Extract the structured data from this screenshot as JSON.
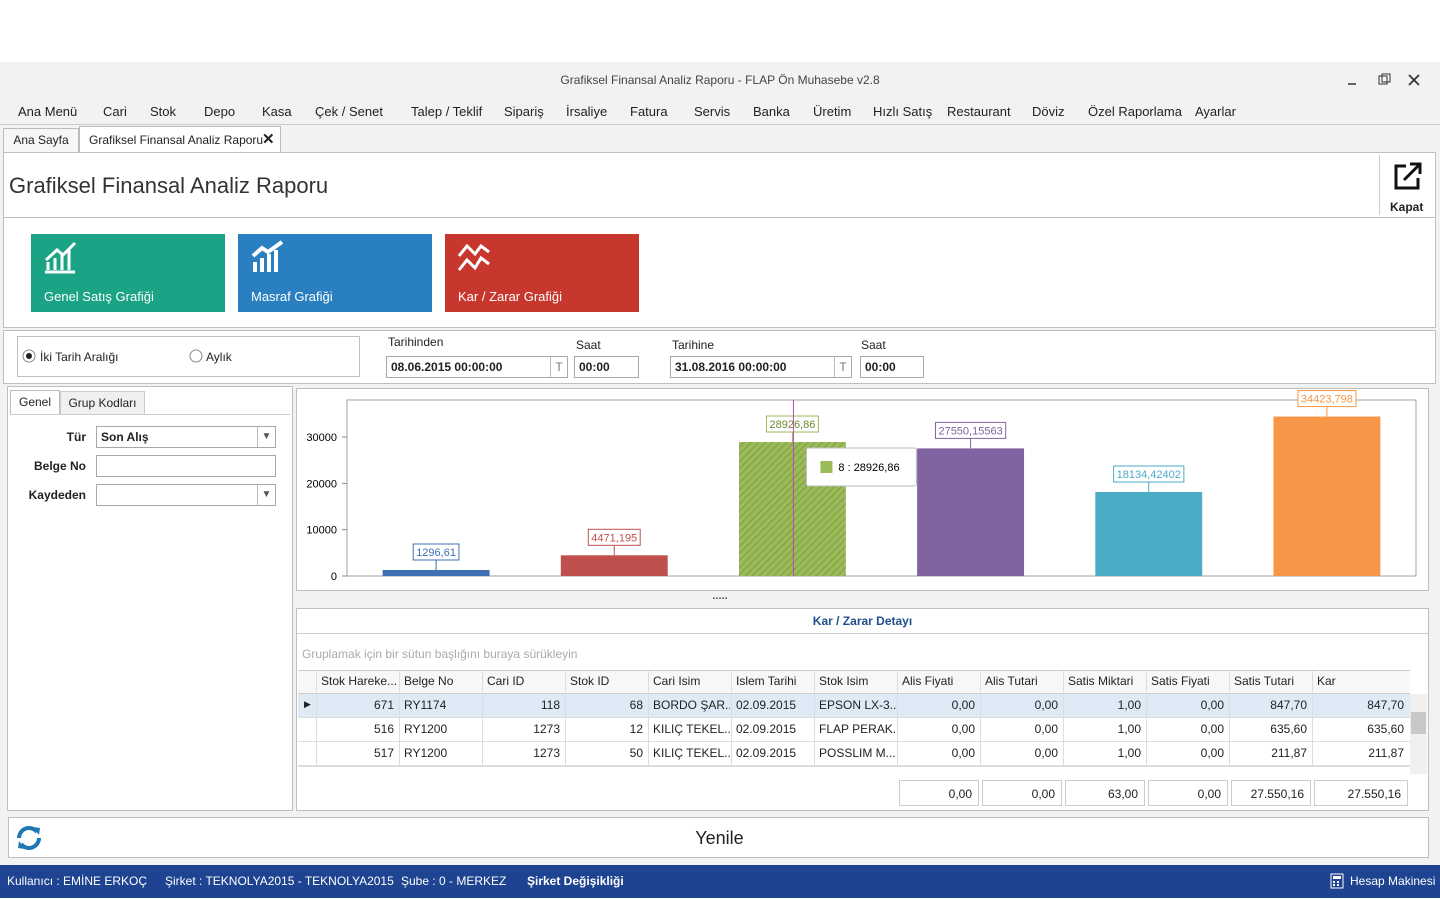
{
  "window_title": "Grafiksel Finansal Analiz Raporu - FLAP Ön Muhasebe v2.8",
  "menu": [
    "Ana Menü",
    "Cari",
    "Stok",
    "Depo",
    "Kasa",
    "Çek / Senet",
    "Talep / Teklif",
    "Sipariş",
    "İrsaliye",
    "Fatura",
    "Servis",
    "Banka",
    "Üretim",
    "Hızlı Satış",
    "Restaurant",
    "Döviz",
    "Özel Raporlama",
    "Ayarlar"
  ],
  "tabs": [
    "Ana Sayfa",
    "Grafiksel Finansal Analiz Raporu"
  ],
  "header": {
    "title": "Grafiksel Finansal Analiz Raporu",
    "close": "Kapat"
  },
  "tiles": [
    "Genel Satış Grafiği",
    "Masraf Grafiği",
    "Kar / Zarar Grafiği"
  ],
  "filter": {
    "options": [
      "İki Tarih Aralığı",
      "Aylık"
    ],
    "from_label": "Tarihinden",
    "from": "08.06.2015 00:00:00",
    "time_label": "Saat",
    "from_time": "00:00",
    "to_label": "Tarihine",
    "to": "31.08.2016 00:00:00",
    "to_time": "00:00",
    "picker": "T"
  },
  "left_panel": {
    "tabs": [
      "Genel",
      "Grup Kodları"
    ],
    "fields": [
      {
        "label": "Tür",
        "value": "Son Alış",
        "dropdown": true
      },
      {
        "label": "Belge No",
        "dropdown": false
      },
      {
        "label": "Kaydeden",
        "dropdown": true
      }
    ]
  },
  "chart_data": {
    "type": "bar",
    "categories": [
      null,
      null,
      null,
      null,
      null,
      null
    ],
    "values": [
      1296.61,
      4471.195,
      28926.86,
      27550.15563,
      18134.42402,
      34423.798
    ],
    "value_labels": [
      "1296,61",
      "4471,195",
      "28926,86",
      "27550,15563",
      "18134,42402",
      "34423,798"
    ],
    "colors": [
      "#3f6fb5",
      "#c0504d",
      "#9bbb59",
      "#8064a2",
      "#4bacc6",
      "#f79646"
    ],
    "ylim": [
      0,
      38000
    ],
    "yticks": [
      0,
      10000,
      20000,
      30000
    ],
    "tooltip": "8 : 28926,86"
  },
  "splitter": ".....",
  "grid": {
    "title": "Kar / Zarar Detayı",
    "group_hint": "Gruplamak için bir sütun başlığını buraya sürükleyin",
    "columns": [
      "Stok Hareke...",
      "Belge No",
      "Cari ID",
      "Stok ID",
      "Cari Isim",
      "Islem Tarihi",
      "Stok Isim",
      "Alis Fiyati",
      "Alis Tutari",
      "Satis Miktari",
      "Satis Fiyati",
      "Satis Tutari",
      "Kar"
    ],
    "rows": [
      [
        "671",
        "RY1174",
        "118",
        "68",
        "BORDO ŞAR...",
        "02.09.2015",
        "EPSON LX-3...",
        "0,00",
        "0,00",
        "1,00",
        "0,00",
        "847,70",
        "847,70"
      ],
      [
        "516",
        "RY1200",
        "1273",
        "12",
        "KILIÇ TEKEL...",
        "02.09.2015",
        "FLAP PERAK...",
        "0,00",
        "0,00",
        "1,00",
        "0,00",
        "635,60",
        "635,60"
      ],
      [
        "517",
        "RY1200",
        "1273",
        "50",
        "KILIÇ TEKEL...",
        "02.09.2015",
        "POSSLIM M...",
        "0,00",
        "0,00",
        "1,00",
        "0,00",
        "211,87",
        "211,87"
      ]
    ],
    "totals": [
      "0,00",
      "0,00",
      "63,00",
      "0,00",
      "27.550,16",
      "27.550,16"
    ]
  },
  "refresh": "Yenile",
  "status": {
    "user": "Kullanıcı : EMİNE ERKOÇ",
    "company": "Şirket : TEKNOLYA2015 - TEKNOLYA2015",
    "branch": "Şube : 0 - MERKEZ",
    "change": "Şirket Değişikliği",
    "calculator": "Hesap Makinesi"
  }
}
